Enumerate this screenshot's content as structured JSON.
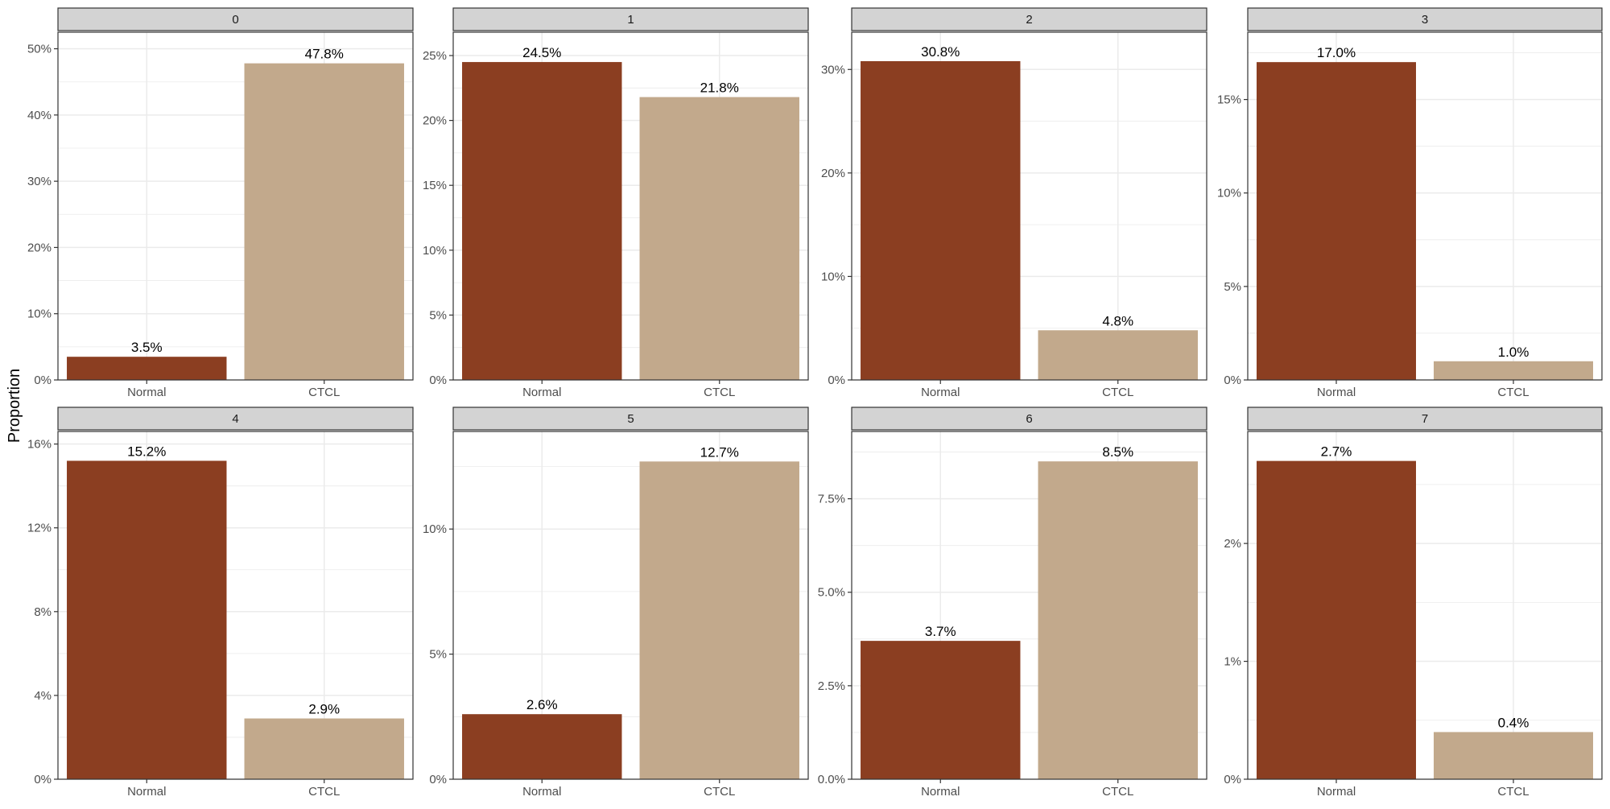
{
  "figure": {
    "ylabel": "Proportion"
  },
  "colors": {
    "Normal": "#8B3E21",
    "CTCL": "#C2A98C",
    "strip_bg": "#D3D3D3",
    "grid": "#EBEBEB",
    "frame": "#333333",
    "tick_text": "#4D4D4D"
  },
  "chart_data": [
    {
      "type": "bar",
      "panel": "0",
      "categories": [
        "Normal",
        "CTCL"
      ],
      "values": [
        3.5,
        47.8
      ],
      "labels": [
        "3.5%",
        "47.8%"
      ],
      "ylim": [
        0,
        52.5
      ],
      "yticks": [
        0,
        10,
        20,
        30,
        40,
        50
      ],
      "ytick_labels": [
        "0%",
        "10%",
        "20%",
        "30%",
        "40%",
        "50%"
      ],
      "xlabel": "",
      "ylabel": "Proportion"
    },
    {
      "type": "bar",
      "panel": "1",
      "categories": [
        "Normal",
        "CTCL"
      ],
      "values": [
        24.5,
        21.8
      ],
      "labels": [
        "24.5%",
        "21.8%"
      ],
      "ylim": [
        0,
        26.8
      ],
      "yticks": [
        0,
        5,
        10,
        15,
        20,
        25
      ],
      "ytick_labels": [
        "0%",
        "5%",
        "10%",
        "15%",
        "20%",
        "25%"
      ],
      "xlabel": "",
      "ylabel": "Proportion"
    },
    {
      "type": "bar",
      "panel": "2",
      "categories": [
        "Normal",
        "CTCL"
      ],
      "values": [
        30.8,
        4.8
      ],
      "labels": [
        "30.8%",
        "4.8%"
      ],
      "ylim": [
        0,
        33.6
      ],
      "yticks": [
        0,
        10,
        20,
        30
      ],
      "ytick_labels": [
        "0%",
        "10%",
        "20%",
        "30%"
      ],
      "xlabel": "",
      "ylabel": "Proportion"
    },
    {
      "type": "bar",
      "panel": "3",
      "categories": [
        "Normal",
        "CTCL"
      ],
      "values": [
        17.0,
        1.0
      ],
      "labels": [
        "17.0%",
        "1.0%"
      ],
      "ylim": [
        0,
        18.6
      ],
      "yticks": [
        0,
        5,
        10,
        15
      ],
      "ytick_labels": [
        "0%",
        "5%",
        "10%",
        "15%"
      ],
      "xlabel": "",
      "ylabel": "Proportion"
    },
    {
      "type": "bar",
      "panel": "4",
      "categories": [
        "Normal",
        "CTCL"
      ],
      "values": [
        15.2,
        2.9
      ],
      "labels": [
        "15.2%",
        "2.9%"
      ],
      "ylim": [
        0,
        16.6
      ],
      "yticks": [
        0,
        4,
        8,
        12,
        16
      ],
      "ytick_labels": [
        "0%",
        "4%",
        "8%",
        "12%",
        "16%"
      ],
      "xlabel": "",
      "ylabel": "Proportion"
    },
    {
      "type": "bar",
      "panel": "5",
      "categories": [
        "Normal",
        "CTCL"
      ],
      "values": [
        2.6,
        12.7
      ],
      "labels": [
        "2.6%",
        "12.7%"
      ],
      "ylim": [
        0,
        13.9
      ],
      "yticks": [
        0,
        5,
        10
      ],
      "ytick_labels": [
        "0%",
        "5%",
        "10%"
      ],
      "xlabel": "",
      "ylabel": "Proportion"
    },
    {
      "type": "bar",
      "panel": "6",
      "categories": [
        "Normal",
        "CTCL"
      ],
      "values": [
        3.7,
        8.5
      ],
      "labels": [
        "3.7%",
        "8.5%"
      ],
      "ylim": [
        0,
        9.3
      ],
      "yticks": [
        0,
        2.5,
        5,
        7.5
      ],
      "ytick_labels": [
        "0.0%",
        "2.5%",
        "5.0%",
        "7.5%"
      ],
      "xlabel": "",
      "ylabel": "Proportion"
    },
    {
      "type": "bar",
      "panel": "7",
      "categories": [
        "Normal",
        "CTCL"
      ],
      "values": [
        2.7,
        0.4
      ],
      "labels": [
        "2.7%",
        "0.4%"
      ],
      "ylim": [
        0,
        2.95
      ],
      "yticks": [
        0,
        1,
        2
      ],
      "ytick_labels": [
        "0%",
        "1%",
        "2%"
      ],
      "xlabel": "",
      "ylabel": "Proportion"
    }
  ]
}
